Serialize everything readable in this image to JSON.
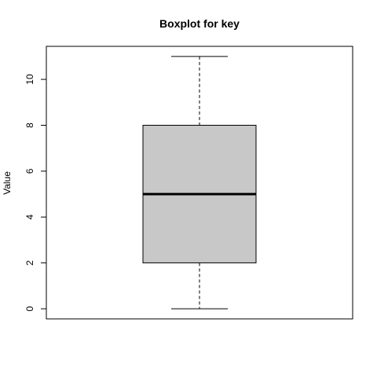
{
  "chart_data": {
    "type": "boxplot",
    "title": "Boxplot for key",
    "xlabel": "",
    "ylabel": "Value",
    "ylim": [
      -0.44,
      11.44
    ],
    "yticks": [
      0,
      2,
      4,
      6,
      8,
      10
    ],
    "grid": false,
    "series": [
      {
        "min": 0,
        "q1": 2,
        "median": 5,
        "q3": 8,
        "max": 11
      }
    ],
    "box_fill": "#c8c8c8",
    "line_color": "#000000"
  }
}
